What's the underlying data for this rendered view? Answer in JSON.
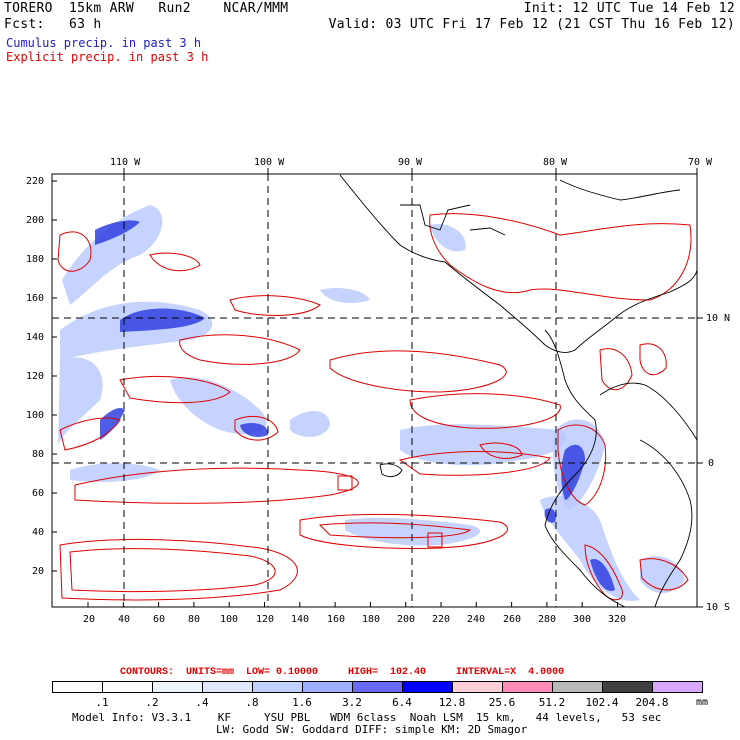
{
  "header": {
    "left_line1": "TORERO  15km ARW   Run2    NCAR/MMM",
    "left_line2": "Fcst:   63 h",
    "right_line1": "Init: 12 UTC Tue 14 Feb 12",
    "right_line2": "Valid: 03 UTC Fri 17 Feb 12 (21 CST Thu 16 Feb 12)"
  },
  "legend": {
    "cumulus": "Cumulus precip. in past 3 h",
    "explicit": "Explicit precip. in past 3 h"
  },
  "map": {
    "top_lon_labels": [
      "110 W",
      "100 W",
      "90 W",
      "80 W",
      "70 W"
    ],
    "right_lat_labels": [
      "10 N",
      "0",
      "10 S"
    ],
    "left_y_ticks": [
      "220",
      "200",
      "180",
      "160",
      "140",
      "120",
      "100",
      "80",
      "60",
      "40",
      "20"
    ],
    "bottom_x_ticks": [
      "20",
      "40",
      "60",
      "80",
      "100",
      "120",
      "140",
      "160",
      "180",
      "200",
      "220",
      "240",
      "260",
      "280",
      "300",
      "320"
    ]
  },
  "contours": {
    "text": "CONTOURS:  UNITS=mm  LOW= 0.10000     HIGH=  102.40     INTERVAL=X  4.0000"
  },
  "colorbar": {
    "labels": [
      ".1",
      ".2",
      ".4",
      ".8",
      "1.6",
      "3.2",
      "6.4",
      "12.8",
      "25.6",
      "51.2",
      "102.4",
      "204.8"
    ],
    "units": "mm",
    "colors": [
      "#ffffff",
      "#ffffff",
      "#eef4ff",
      "#dfe8ff",
      "#c0d0ff",
      "#a0b0ff",
      "#6a6af8",
      "#0000ff",
      "#ffd0d8",
      "#ff8cb8",
      "#b8b8b8",
      "#404040",
      "#d8a8ff"
    ]
  },
  "footer": {
    "line1": "Model Info: V3.3.1    KF     YSU PBL   WDM 6class  Noah LSM  15 km,   44 levels,   53 sec",
    "line2": "LW: Godd SW: Goddard DIFF: simple KM: 2D Smagor"
  }
}
